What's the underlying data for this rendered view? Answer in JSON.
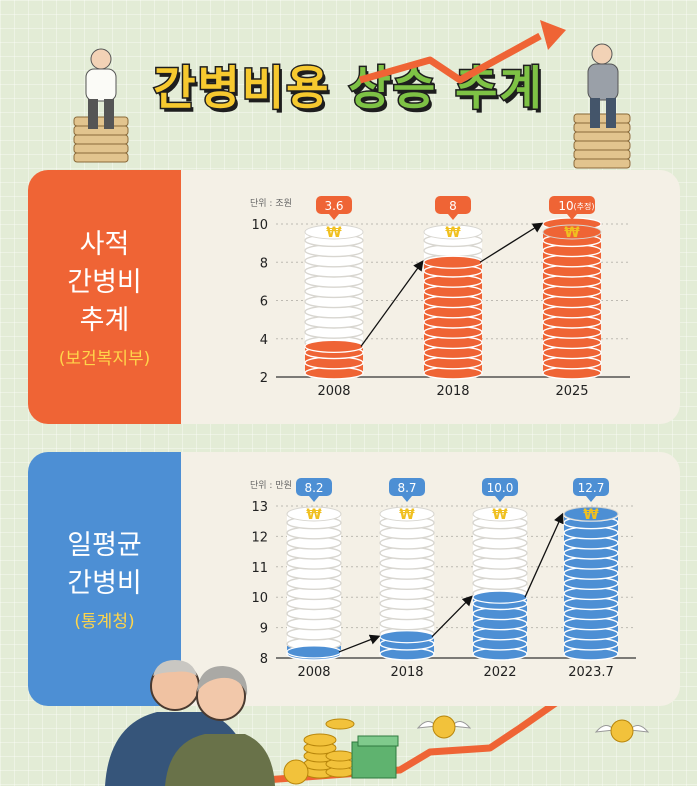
{
  "title": {
    "part1": "간병비용",
    "part2": "상승 추계"
  },
  "colors": {
    "orange": "#ef6435",
    "blue": "#4d8fd4",
    "coin_white": "#ffffff",
    "coin_edge": "#d8d6d0",
    "won_symbol": "#f0c020"
  },
  "chart_data": [
    {
      "type": "bar",
      "label_lines": [
        "사적",
        "간병비",
        "추계"
      ],
      "source": "(보건복지부)",
      "unit": "단위 : 조원",
      "categories": [
        "2008",
        "2018",
        "2025"
      ],
      "values": [
        3.6,
        8,
        10
      ],
      "data_labels": [
        "3.6",
        "8",
        "10"
      ],
      "data_label_note": [
        "",
        "",
        "(추정)"
      ],
      "ylim": [
        2,
        10
      ],
      "yticks": [
        "2",
        "4",
        "6",
        "8",
        "10"
      ],
      "color": "#ef6435",
      "icon": "won-coin-stack-icon"
    },
    {
      "type": "bar",
      "label_lines": [
        "일평균",
        "간병비"
      ],
      "source": "(통계청)",
      "unit": "단위 : 만원",
      "categories": [
        "2008",
        "2018",
        "2022",
        "2023.7"
      ],
      "values": [
        8.2,
        8.7,
        10.0,
        12.7
      ],
      "data_labels": [
        "8.2",
        "8.7",
        "10.0",
        "12.7"
      ],
      "data_label_note": [
        "",
        "",
        "",
        ""
      ],
      "ylim": [
        8,
        13
      ],
      "yticks": [
        "8",
        "9",
        "10",
        "11",
        "12",
        "13"
      ],
      "color": "#4d8fd4",
      "icon": "won-coin-stack-icon"
    }
  ]
}
